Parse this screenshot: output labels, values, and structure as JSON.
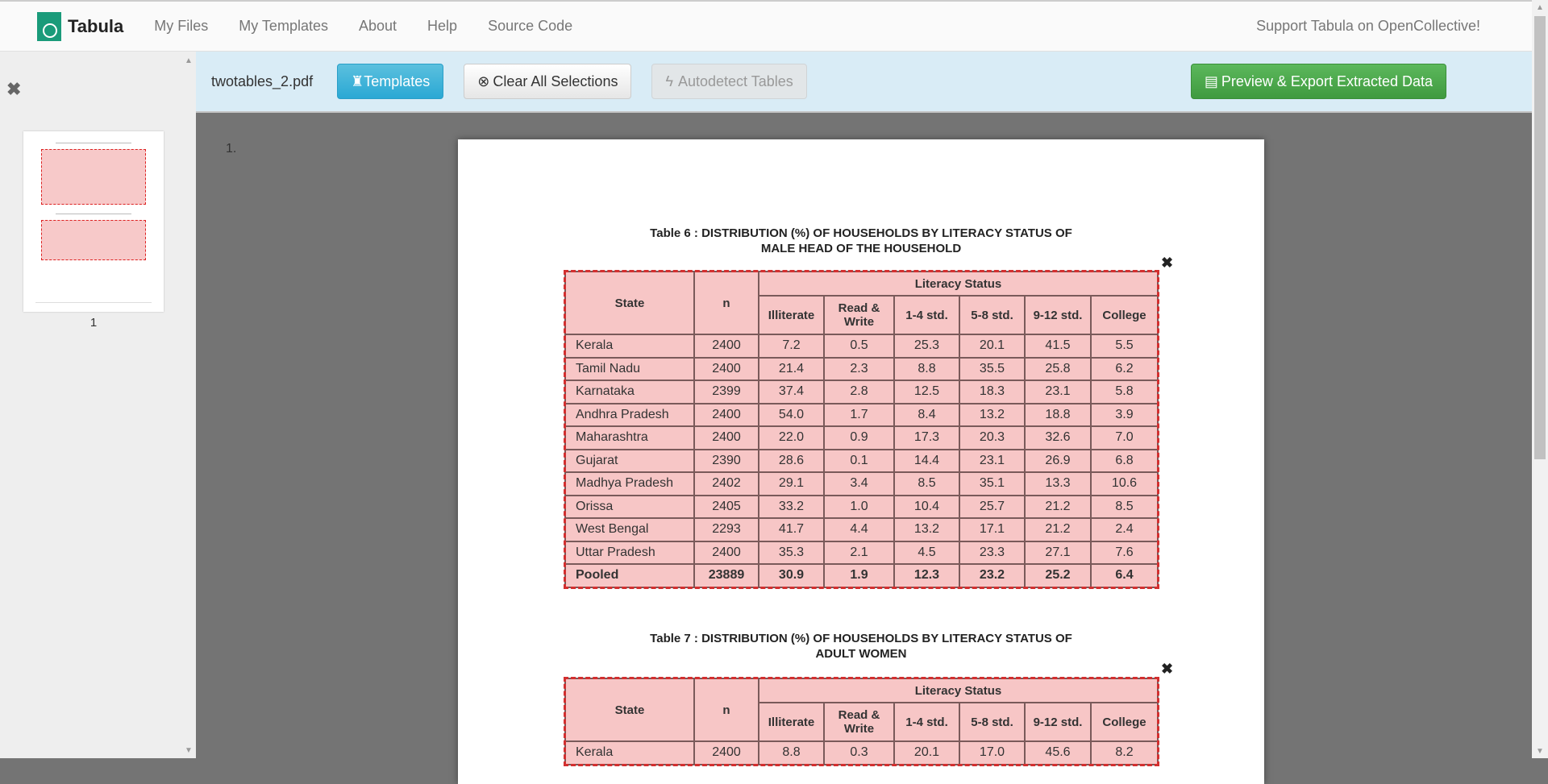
{
  "nav": {
    "brand": "Tabula",
    "links": [
      "My Files",
      "My Templates",
      "About",
      "Help",
      "Source Code"
    ],
    "support": "Support Tabula on OpenCollective!"
  },
  "toolbar": {
    "filename": "twotables_2.pdf",
    "templates": "Templates",
    "clear": "Clear All Selections",
    "autodetect": "Autodetect Tables",
    "export": "Preview & Export Extracted Data"
  },
  "sidebar": {
    "page_label": "1"
  },
  "page_number": "1.",
  "colors": {
    "accent": "#2aa8d4",
    "export": "#4cae4c",
    "selection": "#d32f2f"
  },
  "header": {
    "state": "State",
    "n": "n",
    "group": "Literacy Status",
    "cols": [
      "Illiterate",
      "Read & Write",
      "1-4 std.",
      "5-8 std.",
      "9-12 std.",
      "College"
    ]
  },
  "table6": {
    "title1": "Table 6 : DISTRIBUTION (%) OF HOUSEHOLDS BY LITERACY STATUS OF",
    "title2": "MALE HEAD OF THE HOUSEHOLD",
    "rows": [
      [
        "Kerala",
        "2400",
        "7.2",
        "0.5",
        "25.3",
        "20.1",
        "41.5",
        "5.5"
      ],
      [
        "Tamil Nadu",
        "2400",
        "21.4",
        "2.3",
        "8.8",
        "35.5",
        "25.8",
        "6.2"
      ],
      [
        "Karnataka",
        "2399",
        "37.4",
        "2.8",
        "12.5",
        "18.3",
        "23.1",
        "5.8"
      ],
      [
        "Andhra Pradesh",
        "2400",
        "54.0",
        "1.7",
        "8.4",
        "13.2",
        "18.8",
        "3.9"
      ],
      [
        "Maharashtra",
        "2400",
        "22.0",
        "0.9",
        "17.3",
        "20.3",
        "32.6",
        "7.0"
      ],
      [
        "Gujarat",
        "2390",
        "28.6",
        "0.1",
        "14.4",
        "23.1",
        "26.9",
        "6.8"
      ],
      [
        "Madhya Pradesh",
        "2402",
        "29.1",
        "3.4",
        "8.5",
        "35.1",
        "13.3",
        "10.6"
      ],
      [
        "Orissa",
        "2405",
        "33.2",
        "1.0",
        "10.4",
        "25.7",
        "21.2",
        "8.5"
      ],
      [
        "West Bengal",
        "2293",
        "41.7",
        "4.4",
        "13.2",
        "17.1",
        "21.2",
        "2.4"
      ],
      [
        "Uttar Pradesh",
        "2400",
        "35.3",
        "2.1",
        "4.5",
        "23.3",
        "27.1",
        "7.6"
      ],
      [
        "Pooled",
        "23889",
        "30.9",
        "1.9",
        "12.3",
        "23.2",
        "25.2",
        "6.4"
      ]
    ]
  },
  "table7": {
    "title1": "Table 7 : DISTRIBUTION (%) OF HOUSEHOLDS BY LITERACY STATUS OF",
    "title2": "ADULT WOMEN",
    "rows": [
      [
        "Kerala",
        "2400",
        "8.8",
        "0.3",
        "20.1",
        "17.0",
        "45.6",
        "8.2"
      ]
    ]
  }
}
